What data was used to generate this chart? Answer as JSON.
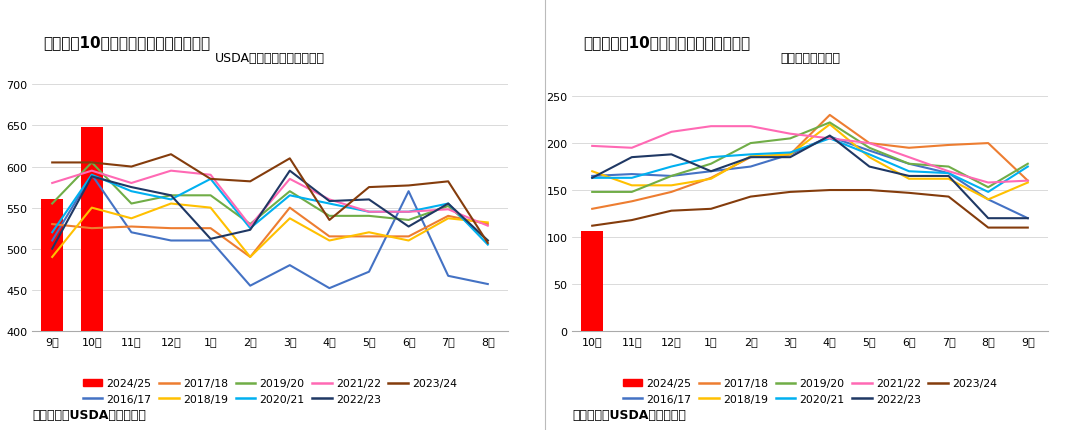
{
  "chart1": {
    "title_main": "图：美豆10月压榨创历史同期最高记录",
    "title_sub": "USDA大豆月度压榨（万吨）",
    "xlabel_months": [
      "9月",
      "10月",
      "11月",
      "12月",
      "1月",
      "2月",
      "3月",
      "4月",
      "5月",
      "6月",
      "7月",
      "8月"
    ],
    "ylim": [
      400,
      720
    ],
    "yticks": [
      400,
      450,
      500,
      550,
      600,
      650,
      700
    ],
    "bar_2024_25": {
      "months": [
        0,
        1
      ],
      "values": [
        560,
        648
      ]
    },
    "series": {
      "2016/17": {
        "color": "#4472C4",
        "values": [
          510,
          590,
          520,
          510,
          510,
          455,
          480,
          452,
          472,
          570,
          467,
          457
        ]
      },
      "2017/18": {
        "color": "#ED7D31",
        "values": [
          530,
          525,
          527,
          525,
          525,
          490,
          550,
          515,
          515,
          515,
          540,
          530
        ]
      },
      "2018/19": {
        "color": "#FFC000",
        "values": [
          490,
          550,
          537,
          555,
          550,
          490,
          537,
          510,
          520,
          510,
          537,
          532
        ]
      },
      "2019/20": {
        "color": "#70AD47",
        "values": [
          555,
          605,
          555,
          565,
          565,
          530,
          570,
          540,
          540,
          535,
          552,
          510
        ]
      },
      "2020/21": {
        "color": "#00B0F0",
        "values": [
          520,
          590,
          570,
          560,
          585,
          525,
          565,
          555,
          545,
          545,
          555,
          505
        ]
      },
      "2021/22": {
        "color": "#FF69B4",
        "values": [
          580,
          595,
          580,
          595,
          590,
          528,
          585,
          560,
          545,
          545,
          548,
          528
        ]
      },
      "2022/23": {
        "color": "#1F3864",
        "values": [
          500,
          588,
          575,
          565,
          512,
          523,
          595,
          558,
          560,
          527,
          555,
          510
        ]
      },
      "2023/24": {
        "color": "#843C0C",
        "values": [
          605,
          605,
          600,
          615,
          585,
          582,
          610,
          535,
          575,
          577,
          582,
          507
        ]
      }
    },
    "source": "数据来源：USDA，国富期货"
  },
  "chart2": {
    "title_main": "图：美豆油10月库存位于历史同期最低",
    "title_sub": "豆油库存（万吨）",
    "xlabel_months": [
      "10月",
      "11月",
      "12月",
      "1月",
      "2月",
      "3月",
      "4月",
      "5月",
      "6月",
      "7月",
      "8月",
      "9月"
    ],
    "ylim": [
      0,
      280
    ],
    "yticks": [
      0,
      50,
      100,
      150,
      200,
      250
    ],
    "bar_2024_25": {
      "months": [
        0
      ],
      "values": [
        106
      ]
    },
    "series": {
      "2016/17": {
        "color": "#4472C4",
        "values": [
          165,
          167,
          165,
          170,
          175,
          188,
          207,
          192,
          178,
          168,
          140,
          120
        ]
      },
      "2017/18": {
        "color": "#ED7D31",
        "values": [
          130,
          138,
          148,
          163,
          185,
          188,
          230,
          200,
          195,
          198,
          200,
          160
        ]
      },
      "2018/19": {
        "color": "#FFC000",
        "values": [
          170,
          155,
          155,
          162,
          186,
          188,
          220,
          185,
          162,
          162,
          140,
          158
        ]
      },
      "2019/20": {
        "color": "#70AD47",
        "values": [
          148,
          148,
          165,
          178,
          200,
          205,
          222,
          195,
          178,
          175,
          153,
          178
        ]
      },
      "2020/21": {
        "color": "#00B0F0",
        "values": [
          163,
          163,
          175,
          185,
          188,
          190,
          205,
          188,
          170,
          168,
          148,
          175
        ]
      },
      "2021/22": {
        "color": "#FF69B4",
        "values": [
          197,
          195,
          212,
          218,
          218,
          210,
          205,
          200,
          185,
          170,
          158,
          160
        ]
      },
      "2022/23": {
        "color": "#1F3864",
        "values": [
          163,
          185,
          188,
          170,
          185,
          185,
          208,
          175,
          165,
          165,
          120,
          120
        ]
      },
      "2023/24": {
        "color": "#843C0C",
        "values": [
          112,
          118,
          128,
          130,
          143,
          148,
          150,
          150,
          147,
          143,
          110,
          110
        ]
      }
    },
    "source": "数据来源：USDA，国富期货"
  },
  "legend_order": [
    "2024/25",
    "2016/17",
    "2017/18",
    "2018/19",
    "2019/20",
    "2020/21",
    "2021/22",
    "2022/23",
    "2023/24"
  ],
  "bar_color": "#FF0000",
  "background_color": "#FFFFFF",
  "grid_color": "#CCCCCC",
  "title_bg_color": "#D6E8F7"
}
